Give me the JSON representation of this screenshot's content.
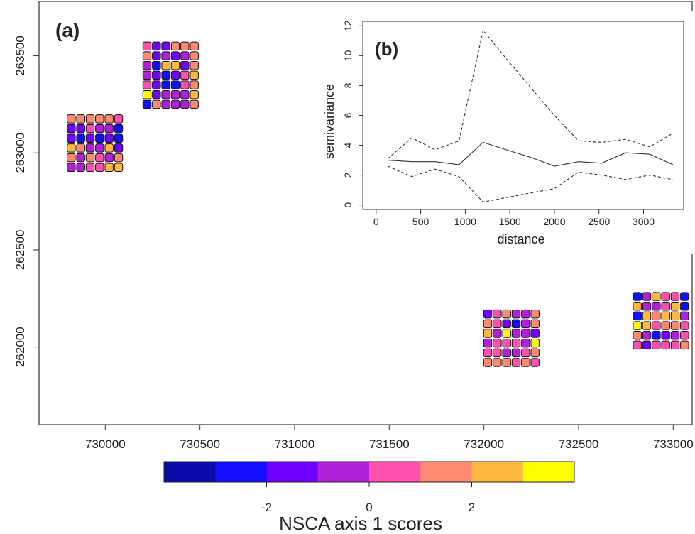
{
  "chart_data": [
    {
      "type": "scatter",
      "panel_label": "(a)",
      "title": "",
      "xlabel": "",
      "ylabel": "",
      "xlim": [
        729650,
        733100
      ],
      "ylim": [
        261600,
        263780
      ],
      "x_ticks": [
        730000,
        730500,
        731000,
        731500,
        732000,
        732500,
        733000
      ],
      "x_tick_labels": [
        "730000",
        "730500",
        "731000",
        "731500",
        "732000",
        "732500",
        "733000"
      ],
      "y_ticks": [
        262000,
        262500,
        263000,
        263500
      ],
      "y_tick_labels": [
        "262000",
        "262500",
        "263000",
        "263500"
      ],
      "grid": false,
      "marker": "rounded-square",
      "grid_spacing_m": 50,
      "clusters": [
        {
          "x0": 729820,
          "y_top": 263175,
          "values": [
            [
              1,
              1,
              1,
              1,
              1,
              0
            ],
            [
              -2,
              -2,
              0,
              -1,
              -1,
              -3
            ],
            [
              -2,
              -3,
              -2,
              -3,
              -2,
              -3
            ],
            [
              2,
              1,
              -1,
              -1,
              2,
              -2
            ],
            [
              1,
              -1,
              1,
              0,
              -1,
              1
            ],
            [
              -1,
              -1,
              0,
              0,
              2,
              2
            ]
          ]
        },
        {
          "x0": 730220,
          "y_top": 263550,
          "values": [
            [
              0,
              -2,
              -2,
              1,
              1,
              1
            ],
            [
              1,
              -2,
              -1,
              -2,
              -1,
              1
            ],
            [
              -1,
              -3,
              2,
              2,
              -2,
              1
            ],
            [
              -1,
              -2,
              -3,
              -2,
              0,
              2
            ],
            [
              0,
              -2,
              -3,
              -3,
              0,
              1
            ],
            [
              3,
              -2,
              -1,
              -1,
              -1,
              2
            ],
            [
              -3,
              1,
              -1,
              -1,
              -1,
              1
            ]
          ]
        },
        {
          "x0": 732020,
          "y_top": 262170,
          "values": [
            [
              -2,
              0,
              1,
              -1,
              -1,
              1
            ],
            [
              1,
              0,
              -2,
              -3,
              -1,
              1
            ],
            [
              2,
              -1,
              3,
              -1,
              -1,
              -2
            ],
            [
              -1,
              0,
              0,
              0,
              -1,
              3
            ],
            [
              0,
              0,
              -1,
              -1,
              0,
              1
            ],
            [
              1,
              1,
              1,
              0,
              1,
              0
            ]
          ]
        },
        {
          "x0": 732810,
          "y_top": 262260,
          "values": [
            [
              -3,
              -1,
              2,
              0,
              0,
              -3
            ],
            [
              2,
              -1,
              -1,
              0,
              2,
              -3
            ],
            [
              -3,
              2,
              1,
              2,
              2,
              -1
            ],
            [
              3,
              2,
              0,
              1,
              1,
              0
            ],
            [
              1,
              -1,
              -3,
              -2,
              -1,
              0
            ],
            [
              0,
              -2,
              0,
              0,
              0,
              1
            ]
          ]
        }
      ]
    },
    {
      "type": "line",
      "panel_label": "(b)",
      "title": "",
      "xlabel": "distance",
      "ylabel": "semivariance",
      "xlim": [
        -150,
        3450
      ],
      "ylim": [
        -0.3,
        12.3
      ],
      "x_ticks": [
        0,
        500,
        1000,
        1500,
        2000,
        2500,
        3000
      ],
      "x_tick_labels": [
        "0",
        "500",
        "1000",
        "1500",
        "2000",
        "2500",
        "3000"
      ],
      "y_ticks": [
        0,
        2,
        4,
        6,
        8,
        10,
        12
      ],
      "y_tick_labels": [
        "0",
        "2",
        "4",
        "6",
        "8",
        "10",
        "12"
      ],
      "grid": false,
      "x": [
        130,
        400,
        660,
        930,
        1200,
        1460,
        1730,
        2000,
        2270,
        2530,
        2800,
        3070,
        3330
      ],
      "series": [
        {
          "style": "dashed",
          "values": [
            3.1,
            4.5,
            3.7,
            4.3,
            11.7,
            9.8,
            7.9,
            6.0,
            4.3,
            4.2,
            4.4,
            3.9,
            4.8
          ]
        },
        {
          "style": "solid",
          "values": [
            3.0,
            2.9,
            2.9,
            2.7,
            4.2,
            3.7,
            3.2,
            2.6,
            2.9,
            2.8,
            3.5,
            3.4,
            2.7
          ]
        },
        {
          "style": "dashed",
          "values": [
            2.6,
            1.9,
            2.4,
            1.9,
            0.2,
            0.5,
            0.8,
            1.1,
            2.2,
            2.0,
            1.7,
            2.0,
            1.7
          ]
        }
      ]
    }
  ],
  "legend": {
    "title": "NSCA axis 1 scores",
    "colors": [
      "#0a0aaa",
      "#1010ff",
      "#7000ff",
      "#b020d8",
      "#ff50b0",
      "#ff8a70",
      "#ffb840",
      "#ffff00"
    ],
    "tick_values": [
      -2,
      0,
      2
    ],
    "tick_labels": [
      "-2",
      "0",
      "2"
    ],
    "range": [
      -4,
      4
    ]
  }
}
